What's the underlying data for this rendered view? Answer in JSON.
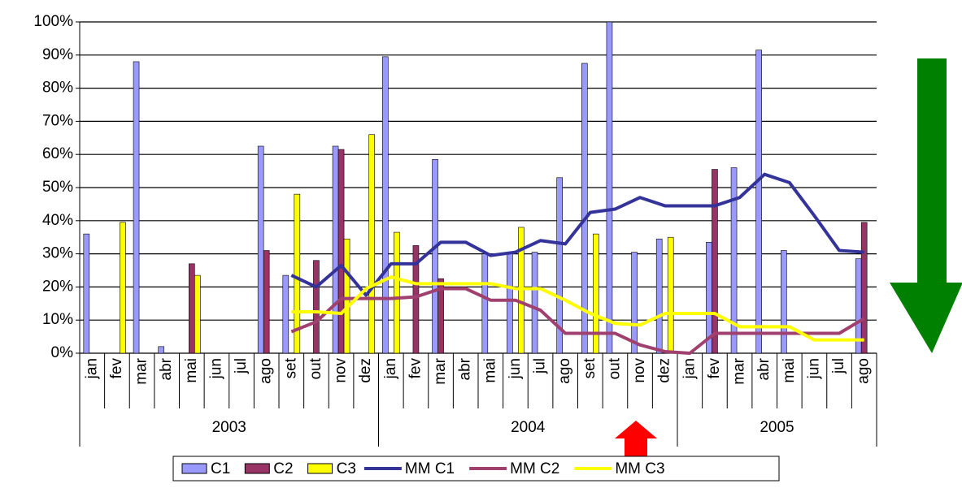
{
  "chart_data": {
    "type": "bar_line",
    "groups": [
      {
        "label": "2003",
        "categories": [
          "jan",
          "fev",
          "mar",
          "abr",
          "mai",
          "jun",
          "jul",
          "ago",
          "set",
          "out",
          "nov",
          "dez"
        ]
      },
      {
        "label": "2004",
        "categories": [
          "jan",
          "fev",
          "mar",
          "abr",
          "mai",
          "jun",
          "jul",
          "ago",
          "set",
          "out",
          "nov",
          "dez"
        ]
      },
      {
        "label": "2005",
        "categories": [
          "jan",
          "fev",
          "mar",
          "abr",
          "mai",
          "jun",
          "jul",
          "ago"
        ]
      }
    ],
    "series": [
      {
        "name": "C1",
        "type": "bar",
        "color": "#9999ff",
        "values": [
          36,
          null,
          88,
          2,
          null,
          null,
          null,
          62.5,
          23.5,
          null,
          62.5,
          null,
          89.5,
          null,
          58.5,
          null,
          30,
          30.5,
          30.5,
          53,
          87.5,
          100,
          30.5,
          34.5,
          null,
          33.5,
          56,
          91.5,
          31,
          null,
          null,
          28.5
        ]
      },
      {
        "name": "C2",
        "type": "bar",
        "color": "#993366",
        "values": [
          null,
          null,
          null,
          null,
          27,
          null,
          null,
          31,
          null,
          28,
          61.5,
          null,
          null,
          32.5,
          22.5,
          null,
          null,
          null,
          null,
          null,
          null,
          null,
          null,
          null,
          null,
          55.5,
          null,
          null,
          null,
          null,
          null,
          39.5
        ]
      },
      {
        "name": "C3",
        "type": "bar",
        "color": "#ffff00",
        "values": [
          null,
          39.5,
          null,
          null,
          23.5,
          null,
          null,
          null,
          48,
          null,
          34.5,
          66,
          36.5,
          null,
          null,
          null,
          null,
          38,
          null,
          null,
          36,
          null,
          null,
          35,
          null,
          null,
          null,
          null,
          null,
          null,
          null,
          null
        ]
      },
      {
        "name": "MM C1",
        "type": "line",
        "color": "#333399",
        "values": [
          null,
          null,
          null,
          null,
          null,
          null,
          null,
          null,
          23.5,
          20,
          26.5,
          17.5,
          27,
          27,
          33.5,
          33.5,
          29.5,
          30.5,
          34,
          33,
          42.5,
          43.5,
          47,
          44.5,
          44.5,
          44.5,
          47,
          54,
          51.5,
          41.5,
          31,
          30.5
        ]
      },
      {
        "name": "MM C2",
        "type": "line",
        "color": "#a0406e",
        "values": [
          null,
          null,
          null,
          null,
          null,
          null,
          null,
          null,
          6.5,
          9.5,
          16.5,
          16.5,
          16.5,
          17,
          19.5,
          19.5,
          16,
          16,
          13,
          6,
          6,
          6,
          2.5,
          0.5,
          0,
          6,
          6,
          6,
          6,
          6,
          6,
          10.5
        ]
      },
      {
        "name": "MM C3",
        "type": "line",
        "color": "#ffff00",
        "values": [
          null,
          null,
          null,
          null,
          null,
          null,
          null,
          null,
          12.5,
          12.5,
          12,
          19.5,
          23,
          21,
          21,
          21,
          21,
          19.5,
          19.5,
          16,
          12,
          9,
          8.5,
          12,
          12,
          12,
          8,
          8,
          8,
          4,
          4,
          4
        ]
      }
    ],
    "ylim": [
      0,
      100
    ],
    "yticks": [
      {
        "value": 0,
        "label": "0%"
      },
      {
        "value": 10,
        "label": "10%"
      },
      {
        "value": 20,
        "label": "20%"
      },
      {
        "value": 30,
        "label": "30%"
      },
      {
        "value": 40,
        "label": "40%"
      },
      {
        "value": 50,
        "label": "50%"
      },
      {
        "value": 60,
        "label": "60%"
      },
      {
        "value": 70,
        "label": "70%"
      },
      {
        "value": 80,
        "label": "80%"
      },
      {
        "value": 90,
        "label": "90%"
      },
      {
        "value": 100,
        "label": "100%"
      }
    ],
    "grid": true
  }
}
